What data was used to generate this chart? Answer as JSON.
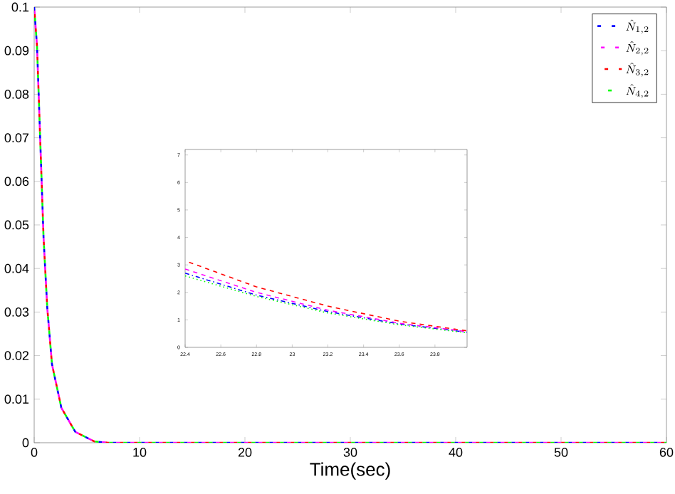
{
  "chart_data": [
    {
      "type": "line",
      "xlabel": "Time(sec)",
      "xlim": [
        0,
        60
      ],
      "xticks": [
        0,
        10,
        20,
        30,
        40,
        50,
        60
      ],
      "ylim": [
        0,
        0.1
      ],
      "yticks": [
        0,
        0.01,
        0.02,
        0.03,
        0.04,
        0.05,
        0.06,
        0.07,
        0.08,
        0.09,
        0.1
      ],
      "legend": "top right",
      "grid": false,
      "x": [
        0,
        0.27,
        0.58,
        0.89,
        1.24,
        1.69,
        2.58,
        3.9,
        5.7,
        7,
        10,
        20,
        30,
        40,
        50,
        60
      ],
      "series": [
        {
          "name": "\\hat{N}_{1,2}",
          "color": "#0000ff",
          "line_style": "dashdot",
          "values": [
            0.1,
            0.091,
            0.069,
            0.047,
            0.031,
            0.018,
            0.008,
            0.0025,
            0.0003,
            0,
            0,
            0,
            0,
            0,
            0,
            0
          ]
        },
        {
          "name": "\\hat{N}_{2,2}",
          "color": "#ff00ff",
          "line_style": "dashed",
          "values": [
            0.1,
            0.091,
            0.069,
            0.047,
            0.031,
            0.018,
            0.008,
            0.0025,
            0.0003,
            0,
            0,
            0,
            0,
            0,
            0,
            0
          ]
        },
        {
          "name": "\\hat{N}_{3,2}",
          "color": "#ff0000",
          "line_style": "dashed",
          "values": [
            0.1,
            0.091,
            0.069,
            0.047,
            0.031,
            0.018,
            0.008,
            0.0025,
            0.0003,
            0,
            0,
            0,
            0,
            0,
            0,
            0
          ]
        },
        {
          "name": "\\hat{N}_{4,2}",
          "color": "#00ff00",
          "line_style": "dotted",
          "values": [
            0.1,
            0.091,
            0.069,
            0.047,
            0.031,
            0.018,
            0.008,
            0.0025,
            0.0003,
            0,
            0,
            0,
            0,
            0,
            0,
            0
          ]
        }
      ]
    },
    {
      "type": "line",
      "xlim": [
        22.4,
        23.98
      ],
      "xticks": [
        22.4,
        22.6,
        22.8,
        23,
        23.2,
        23.4,
        23.6,
        23.8
      ],
      "ylim": [
        0,
        7.2
      ],
      "yticks": [
        0,
        1,
        2,
        3,
        4,
        5,
        6,
        7
      ],
      "grid": false,
      "x": [
        22.4,
        22.8,
        23.2,
        23.6,
        23.98
      ],
      "series": [
        {
          "color": "#0000ff",
          "line_style": "dashdot",
          "values": [
            2.7,
            1.9,
            1.3,
            0.85,
            0.55
          ]
        },
        {
          "color": "#ff00ff",
          "line_style": "dashed",
          "values": [
            2.85,
            2.0,
            1.35,
            0.88,
            0.57
          ]
        },
        {
          "color": "#ff0000",
          "line_style": "dashed",
          "values": [
            3.15,
            2.2,
            1.5,
            0.95,
            0.6
          ]
        },
        {
          "color": "#00ff00",
          "line_style": "dotted",
          "values": [
            2.6,
            1.85,
            1.25,
            0.82,
            0.53
          ]
        }
      ]
    }
  ]
}
